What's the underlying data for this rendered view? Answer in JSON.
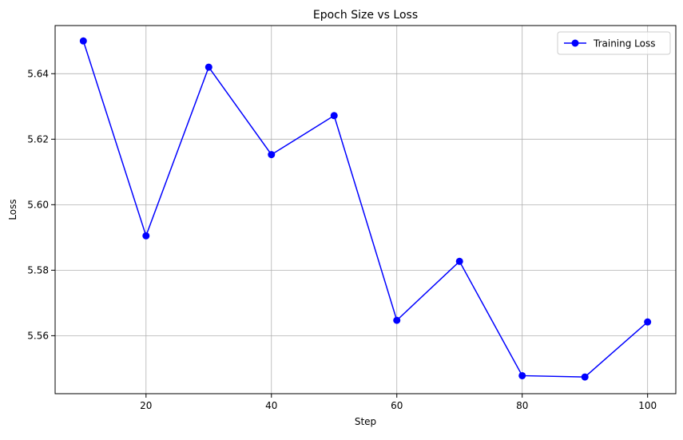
{
  "chart_data": {
    "type": "line",
    "title": "Epoch Size vs Loss",
    "xlabel": "Step",
    "ylabel": "Loss",
    "xlim": [
      5.5,
      104.5
    ],
    "ylim": [
      5.5423,
      5.6547
    ],
    "xticks": [
      20,
      40,
      60,
      80,
      100
    ],
    "yticks": [
      5.56,
      5.58,
      5.6,
      5.62,
      5.64
    ],
    "grid": true,
    "legend_position": "top-right",
    "series": [
      {
        "name": "Training Loss",
        "color": "#0000ff",
        "marker": "circle",
        "x": [
          10,
          20,
          30,
          40,
          50,
          60,
          70,
          80,
          90,
          100
        ],
        "y": [
          5.65,
          5.5905,
          5.642,
          5.6153,
          5.6272,
          5.5647,
          5.5827,
          5.5478,
          5.5474,
          5.5642
        ]
      }
    ]
  }
}
